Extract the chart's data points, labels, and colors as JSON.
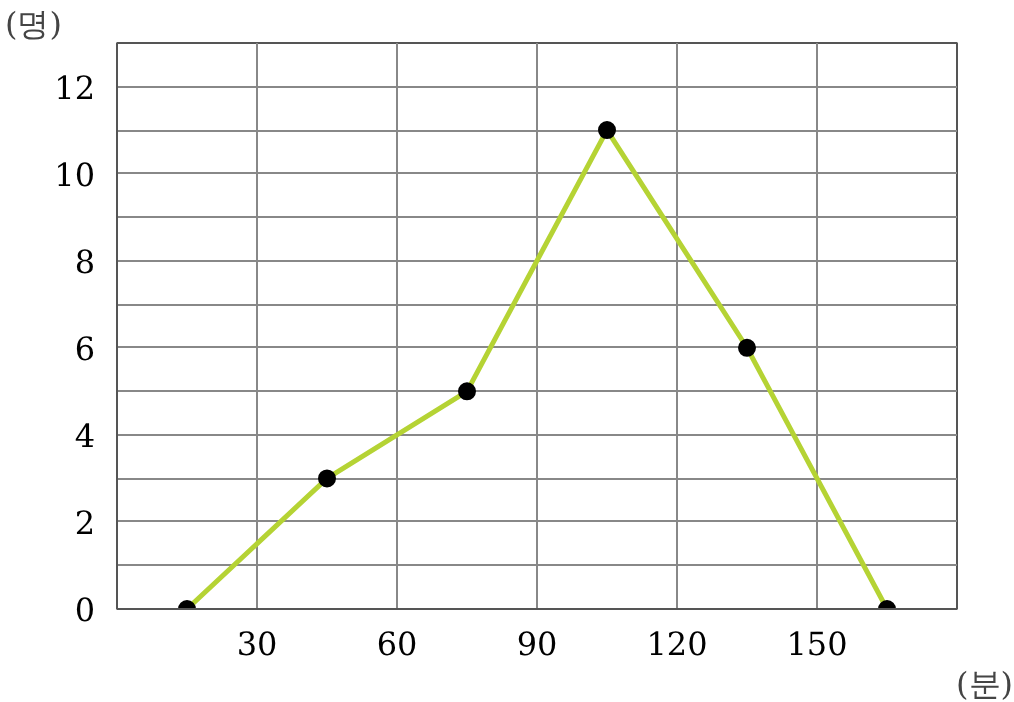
{
  "chart_data": {
    "type": "line",
    "xlabel": "(분)",
    "ylabel": "(명)",
    "x": [
      15,
      45,
      75,
      105,
      135,
      165
    ],
    "series": [
      {
        "color": "#b5d334",
        "values": [
          0,
          3,
          5,
          11,
          6,
          0
        ]
      }
    ],
    "xlim": [
      0,
      180
    ],
    "ylim": [
      0,
      13
    ],
    "xticks": [
      {
        "value": 0,
        "label": null
      },
      30,
      60,
      90,
      120,
      150,
      {
        "value": 180,
        "label": null
      }
    ],
    "yticks": [
      0,
      {
        "value": 1,
        "label": null
      },
      2,
      {
        "value": 3,
        "label": null
      },
      4,
      {
        "value": 5,
        "label": null
      },
      6,
      {
        "value": 7,
        "label": null
      },
      8,
      {
        "value": 9,
        "label": null
      },
      10,
      {
        "value": 11,
        "label": null
      },
      12,
      {
        "value": 13,
        "label": null
      }
    ],
    "grid": true,
    "marker": "circle",
    "line_style": "solid"
  }
}
